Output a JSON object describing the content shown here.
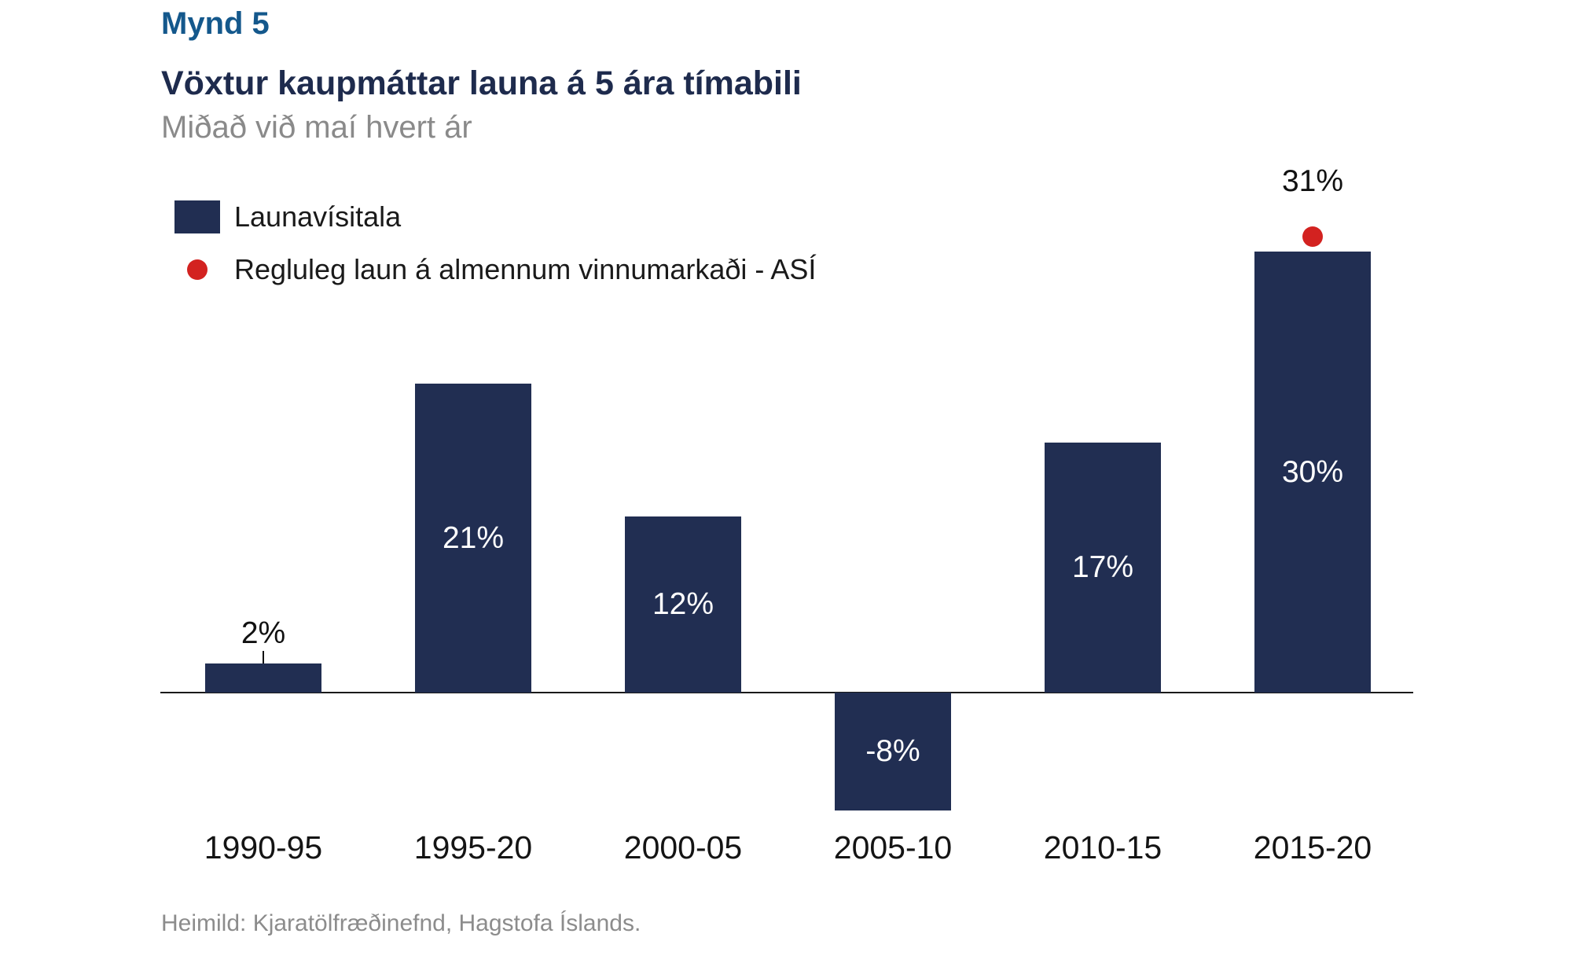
{
  "figure_label": "Mynd 5",
  "title": "Vöxtur kaupmáttar launa á 5 ára tímabili",
  "subtitle": "Miðað við maí hvert ár",
  "legend": {
    "bar_label": "Launavísitala",
    "dot_label": "Regluleg laun á almennum vinnumarkaði - ASÍ"
  },
  "footer": "Heimild: Kjaratölfræðinefnd, Hagstofa Íslands.",
  "colors": {
    "bar": "#212e52",
    "dot": "#d32220",
    "figure_label_blue": "#14588c",
    "title_navy": "#1e2b4d",
    "axis": "#1a1a1a"
  },
  "chart_data": {
    "type": "bar",
    "title": "Vöxtur kaupmáttar launa á 5 ára tímabili",
    "subtitle": "Miðað við maí hvert ár",
    "categories": [
      "1990-95",
      "1995-20",
      "2000-05",
      "2005-10",
      "2010-15",
      "2015-20"
    ],
    "series": [
      {
        "name": "Launavísitala",
        "type": "bar",
        "values": [
          2,
          21,
          12,
          -8,
          17,
          30
        ],
        "labels": [
          "2%",
          "21%",
          "12%",
          "-8%",
          "17%",
          "30%"
        ]
      },
      {
        "name": "Regluleg laun á almennum vinnumarkaði - ASÍ",
        "type": "point",
        "values": [
          null,
          null,
          null,
          null,
          null,
          31
        ],
        "labels": [
          null,
          null,
          null,
          null,
          null,
          "31%"
        ]
      }
    ],
    "xlabel": "",
    "ylabel": "",
    "ylim": [
      -10,
      33
    ],
    "grid": false,
    "legend_position": "top-left"
  }
}
